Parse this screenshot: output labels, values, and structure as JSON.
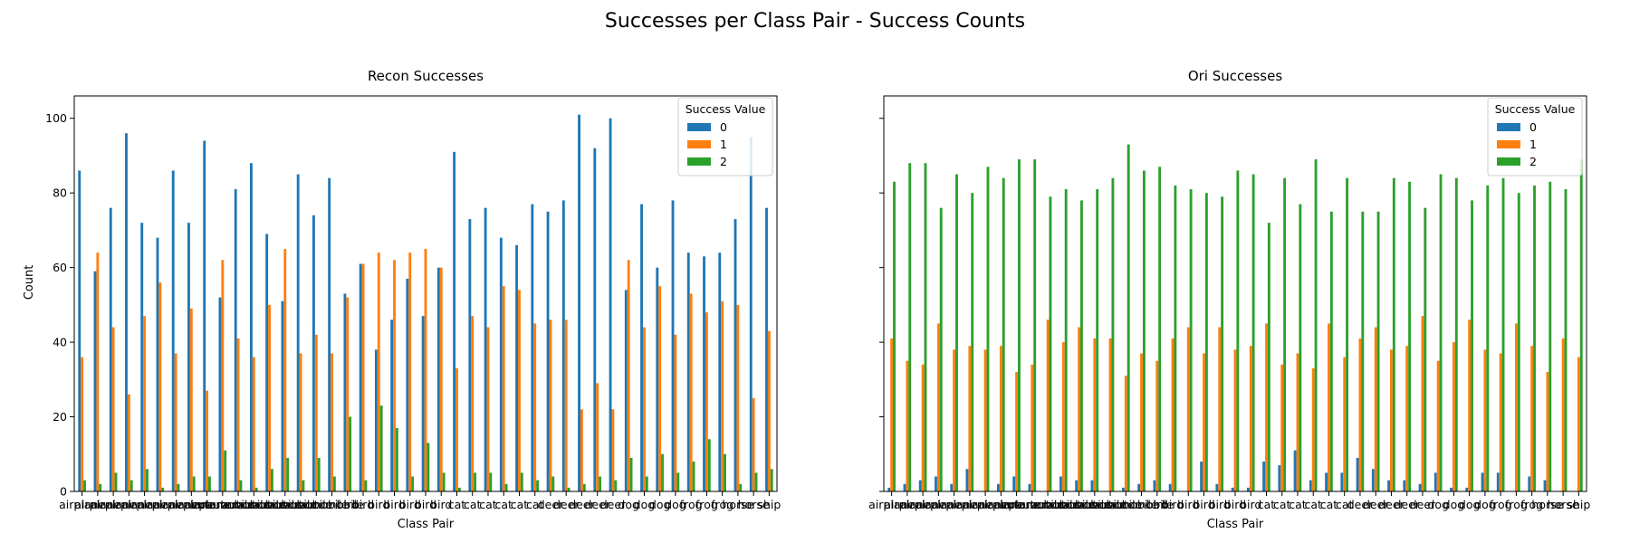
{
  "figure": {
    "title": "Successes per Class Pair - Success Counts"
  },
  "chart_data": [
    {
      "type": "bar",
      "title": "Recon Successes",
      "xlabel": "Class Pair",
      "ylabel": "Count",
      "ylim": [
        0,
        106
      ],
      "yticks": [
        0,
        20,
        40,
        60,
        80,
        100
      ],
      "legend": {
        "title": "Success Value",
        "position": "top-right"
      },
      "x_tick_labels_note": "45 overlapping class-pair tick labels",
      "categories": [
        "airplane",
        "airplane",
        "airplane",
        "airplane",
        "airplane",
        "airplane",
        "airplane",
        "airplane",
        "airplane",
        "automobile",
        "automobile",
        "automobile",
        "automobile",
        "automobile",
        "automobile",
        "automobile",
        "automobile",
        "bird",
        "bird",
        "bird",
        "bird",
        "bird",
        "bird",
        "bird",
        "cat",
        "cat",
        "cat",
        "cat",
        "cat",
        "cat",
        "deer",
        "deer",
        "deer",
        "deer",
        "deer",
        "dog",
        "dog",
        "dog",
        "dog",
        "frog",
        "frog",
        "frog",
        "horse",
        "horse",
        "ship"
      ],
      "series": [
        {
          "name": "0",
          "color": "#1f77b4",
          "values": [
            86,
            59,
            76,
            96,
            72,
            68,
            86,
            72,
            94,
            52,
            81,
            88,
            69,
            51,
            85,
            74,
            84,
            53,
            61,
            38,
            46,
            57,
            47,
            60,
            91,
            73,
            76,
            68,
            66,
            77,
            75,
            78,
            101,
            92,
            100,
            54,
            77,
            60,
            78,
            64,
            63,
            64,
            73,
            95,
            76
          ]
        },
        {
          "name": "1",
          "color": "#ff7f0e",
          "values": [
            36,
            64,
            44,
            26,
            47,
            56,
            37,
            49,
            27,
            62,
            41,
            36,
            50,
            65,
            37,
            42,
            37,
            52,
            61,
            64,
            62,
            64,
            65,
            60,
            33,
            47,
            44,
            55,
            54,
            45,
            46,
            46,
            22,
            29,
            22,
            62,
            44,
            55,
            42,
            53,
            48,
            51,
            50,
            25,
            43
          ]
        },
        {
          "name": "2",
          "color": "#2ca02c",
          "values": [
            3,
            2,
            5,
            3,
            6,
            1,
            2,
            4,
            4,
            11,
            3,
            1,
            6,
            9,
            3,
            9,
            4,
            20,
            3,
            23,
            17,
            4,
            13,
            5,
            1,
            5,
            5,
            2,
            5,
            3,
            4,
            1,
            2,
            4,
            3,
            9,
            4,
            10,
            5,
            8,
            14,
            10,
            2,
            5,
            6
          ]
        }
      ]
    },
    {
      "type": "bar",
      "title": "Ori Successes",
      "xlabel": "Class Pair",
      "ylabel": "",
      "ylim": [
        0,
        106
      ],
      "yticks": [
        0,
        20,
        40,
        60,
        80,
        100
      ],
      "legend": {
        "title": "Success Value",
        "position": "top-right"
      },
      "x_tick_labels_note": "45 overlapping class-pair tick labels",
      "categories": [
        "airplane",
        "airplane",
        "airplane",
        "airplane",
        "airplane",
        "airplane",
        "airplane",
        "airplane",
        "airplane",
        "automobile",
        "automobile",
        "automobile",
        "automobile",
        "automobile",
        "automobile",
        "automobile",
        "automobile",
        "bird",
        "bird",
        "bird",
        "bird",
        "bird",
        "bird",
        "bird",
        "cat",
        "cat",
        "cat",
        "cat",
        "cat",
        "cat",
        "deer",
        "deer",
        "deer",
        "deer",
        "deer",
        "dog",
        "dog",
        "dog",
        "dog",
        "frog",
        "frog",
        "frog",
        "horse",
        "horse",
        "ship"
      ],
      "series": [
        {
          "name": "0",
          "color": "#1f77b4",
          "values": [
            1,
            2,
            3,
            4,
            2,
            6,
            0,
            2,
            4,
            2,
            0,
            4,
            3,
            3,
            0,
            1,
            2,
            3,
            2,
            0,
            8,
            2,
            1,
            1,
            8,
            7,
            11,
            3,
            5,
            5,
            9,
            6,
            3,
            3,
            2,
            5,
            1,
            1,
            5,
            5,
            0,
            4,
            3,
            0,
            0
          ]
        },
        {
          "name": "1",
          "color": "#ff7f0e",
          "values": [
            41,
            35,
            34,
            45,
            38,
            39,
            38,
            39,
            32,
            34,
            46,
            40,
            44,
            41,
            41,
            31,
            37,
            35,
            41,
            44,
            37,
            44,
            38,
            39,
            45,
            34,
            37,
            33,
            45,
            36,
            41,
            44,
            38,
            39,
            47,
            35,
            40,
            46,
            38,
            37,
            45,
            39,
            32,
            41,
            36
          ]
        },
        {
          "name": "2",
          "color": "#2ca02c",
          "values": [
            83,
            88,
            88,
            76,
            85,
            80,
            87,
            84,
            89,
            89,
            79,
            81,
            78,
            81,
            84,
            93,
            86,
            87,
            82,
            81,
            80,
            79,
            86,
            85,
            72,
            84,
            77,
            89,
            75,
            84,
            75,
            75,
            84,
            83,
            76,
            85,
            84,
            78,
            82,
            84,
            80,
            82,
            83,
            81,
            89
          ]
        }
      ]
    }
  ]
}
